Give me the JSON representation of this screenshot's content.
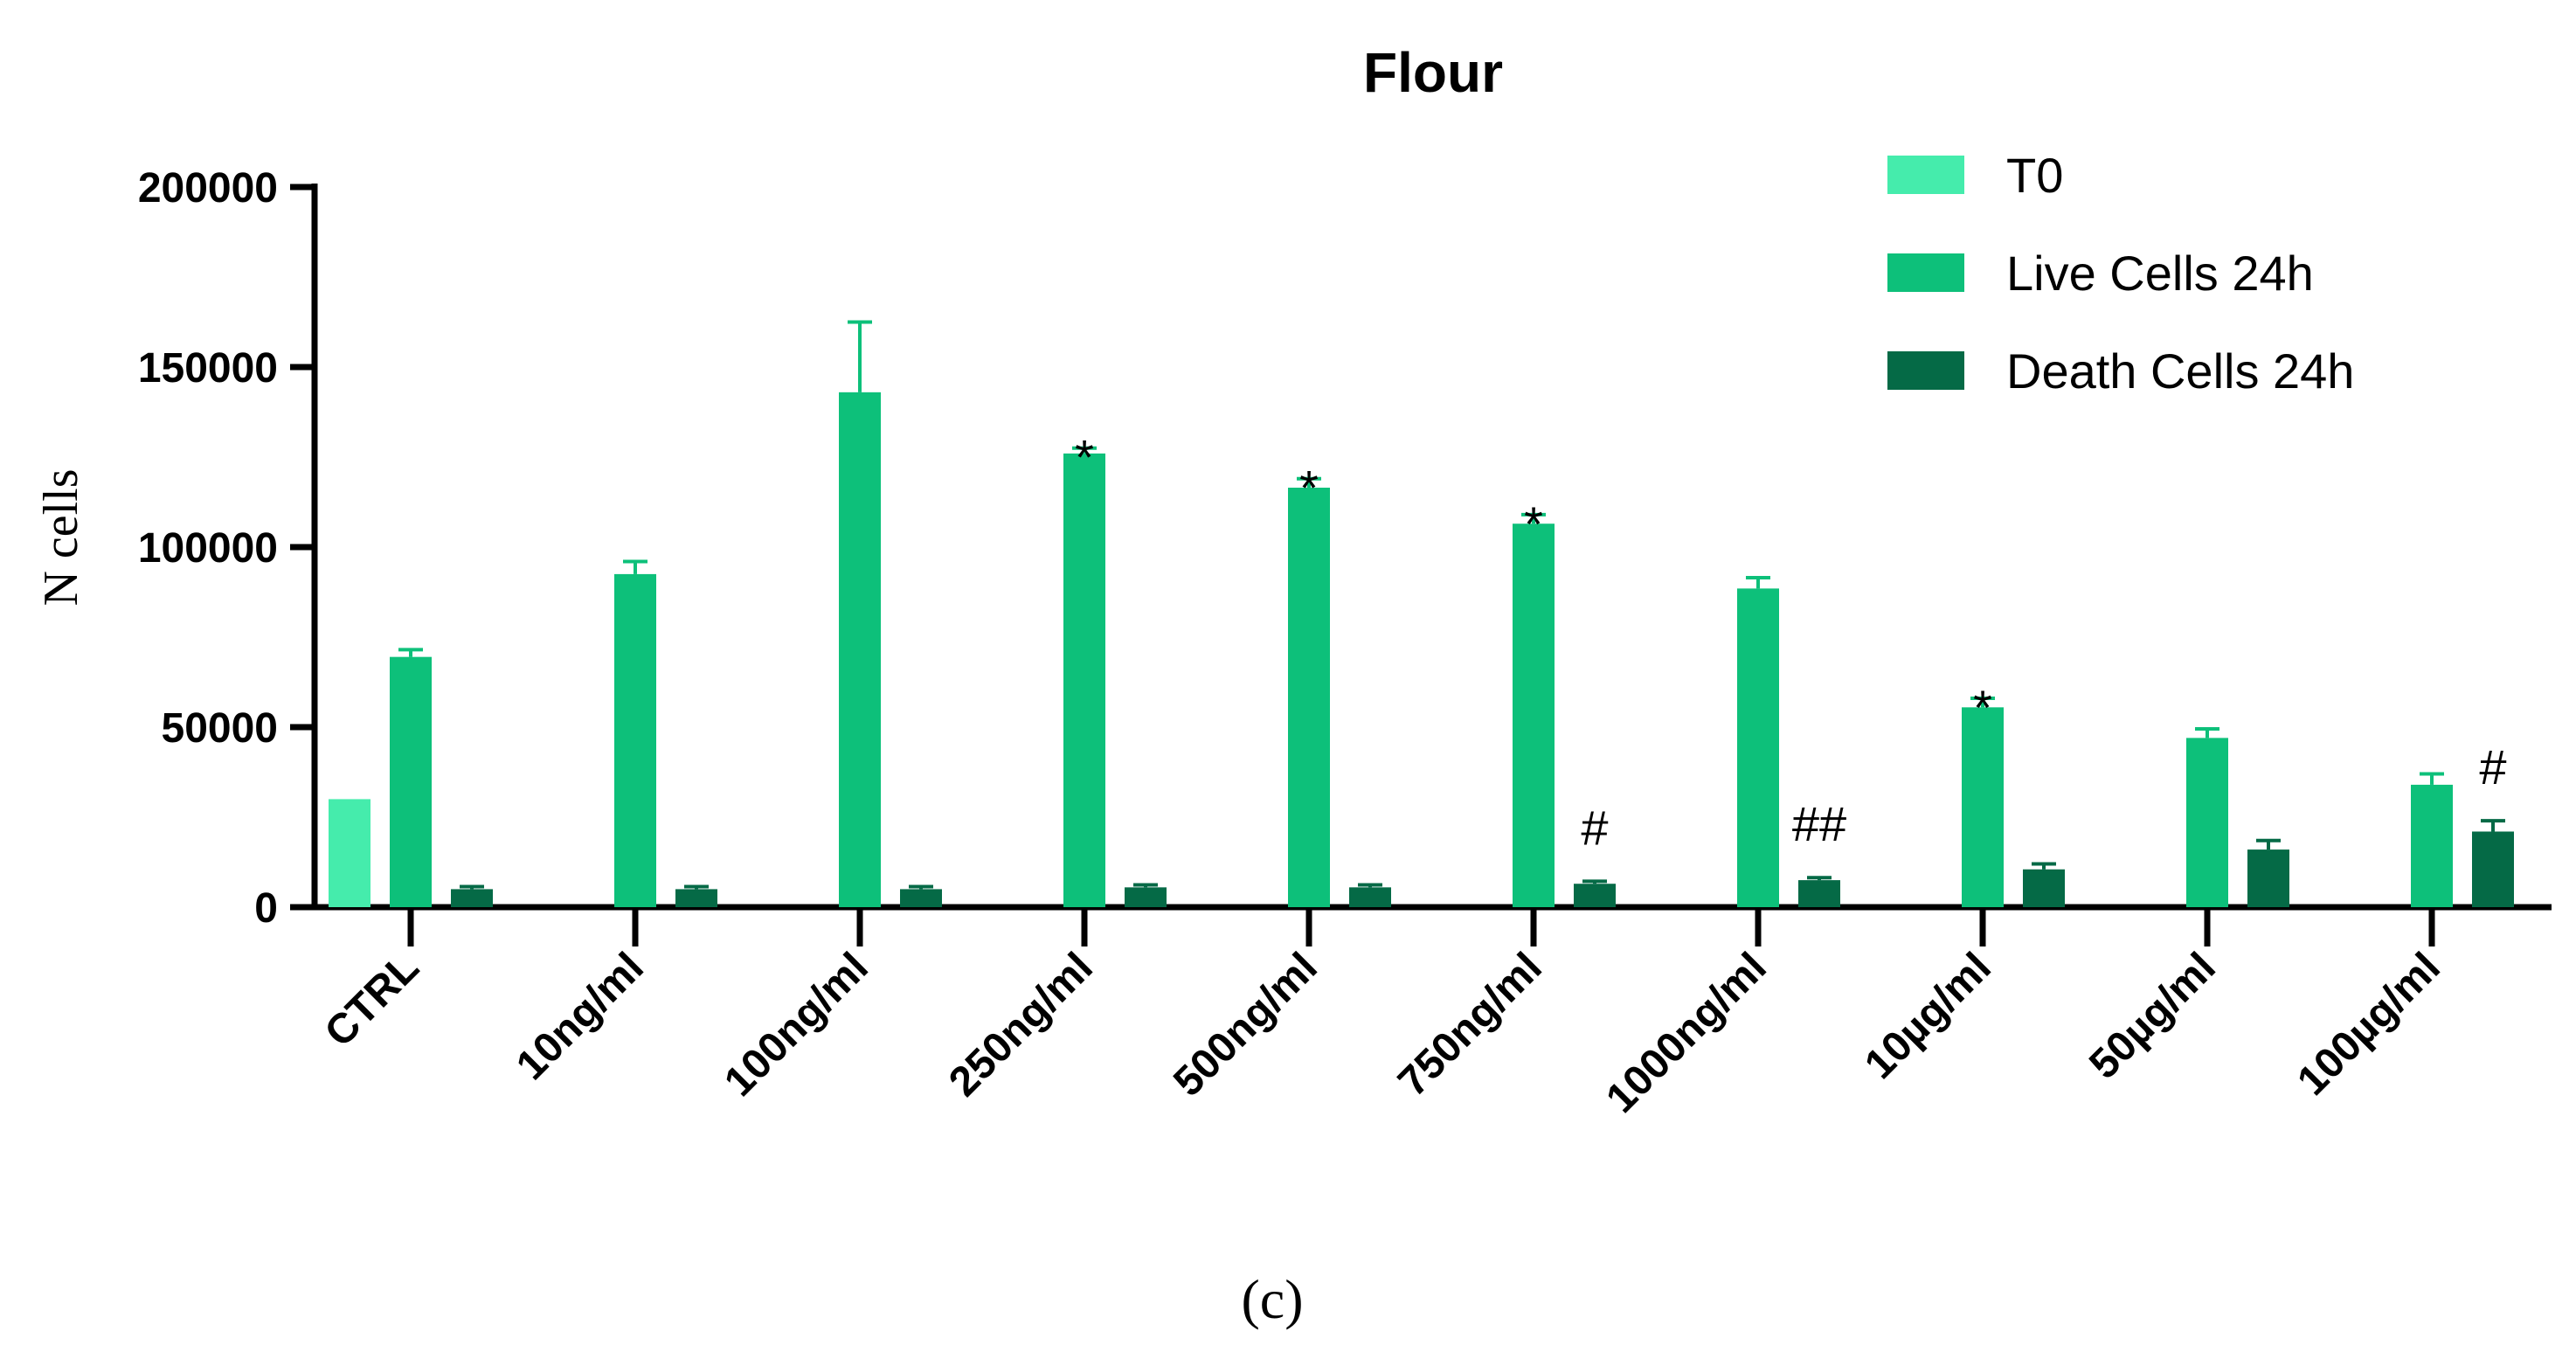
{
  "chart_data": {
    "type": "bar",
    "title": "Flour",
    "xlabel": "",
    "ylabel": "N cells",
    "ylim": [
      0,
      200000
    ],
    "yticks": [
      0,
      50000,
      100000,
      150000,
      200000
    ],
    "ytick_labels": [
      "0",
      "50000",
      "100000",
      "150000",
      "200000"
    ],
    "categories": [
      "CTRL",
      "10ng/ml",
      "100ng/ml",
      "250ng/ml",
      "500ng/ml",
      "750ng/ml",
      "1000ng/ml",
      "10µg/ml",
      "50µg/ml",
      "100µg/ml"
    ],
    "series": [
      {
        "name": "T0",
        "color": "#45ECAC",
        "values": [
          30000,
          null,
          null,
          null,
          null,
          null,
          null,
          null,
          null,
          null
        ],
        "errors": [
          0,
          null,
          null,
          null,
          null,
          null,
          null,
          null,
          null,
          null
        ]
      },
      {
        "name": "Live Cells 24h",
        "color": "#0DC07A",
        "values": [
          69500,
          92500,
          143000,
          126000,
          116500,
          106500,
          88500,
          55500,
          47000,
          34000
        ],
        "errors": [
          2000,
          3500,
          19500,
          1500,
          2500,
          2500,
          3000,
          2500,
          2500,
          3000
        ],
        "annotations": [
          "",
          "",
          "",
          "*",
          "*",
          "*",
          "",
          "*",
          "",
          ""
        ]
      },
      {
        "name": "Death Cells 24h",
        "color": "#056A46",
        "values": [
          5000,
          5000,
          5000,
          5500,
          5500,
          6500,
          7500,
          10500,
          16000,
          21000
        ],
        "errors": [
          700,
          700,
          700,
          700,
          700,
          700,
          700,
          1500,
          2500,
          3000
        ],
        "annotations": [
          "",
          "",
          "",
          "",
          "",
          "#",
          "##",
          "",
          "",
          "#"
        ]
      }
    ],
    "legend_position": "top-right",
    "grid": false,
    "panel_label": "(c)"
  }
}
